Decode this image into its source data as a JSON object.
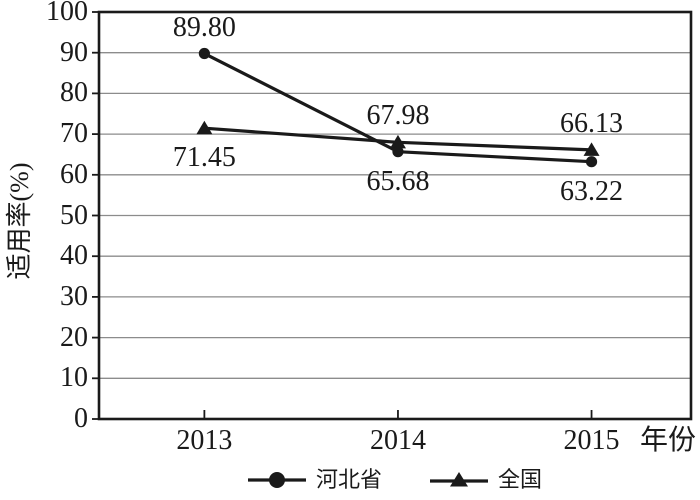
{
  "chart_data": {
    "type": "line",
    "title": "",
    "xlabel": "年份",
    "ylabel": "适用率(%)",
    "categories": [
      "2013",
      "2014",
      "2015"
    ],
    "ylim": [
      0,
      100
    ],
    "yticks": [
      0,
      10,
      20,
      30,
      40,
      50,
      60,
      70,
      80,
      90,
      100
    ],
    "grid": "horizontal",
    "legend_position": "bottom-center",
    "colors": {
      "line": "#1a1a1a",
      "grid": "#8c8c8c",
      "text": "#1a1a1a",
      "background": "#ffffff"
    },
    "series": [
      {
        "name": "河北省",
        "marker": "circle",
        "values": [
          89.8,
          65.68,
          63.22
        ],
        "point_labels": [
          "89.80",
          "65.68",
          "63.22"
        ],
        "label_side": [
          "above",
          "below",
          "below"
        ]
      },
      {
        "name": "全国",
        "marker": "triangle",
        "values": [
          71.45,
          67.98,
          66.13
        ],
        "point_labels": [
          "71.45",
          "67.98",
          "66.13"
        ],
        "label_side": [
          "below",
          "above",
          "above"
        ]
      }
    ]
  }
}
